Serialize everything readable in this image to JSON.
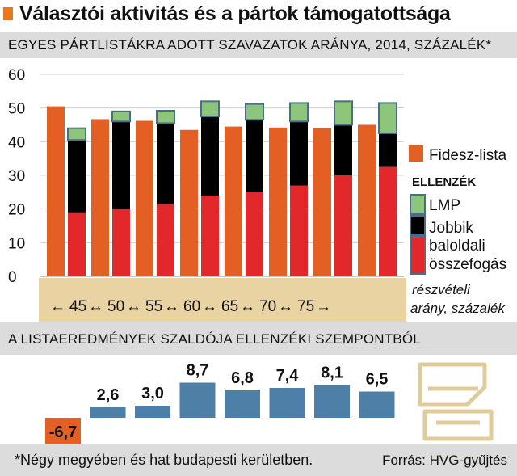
{
  "title": "Választói aktivitás és a pártok támogatottsága",
  "section1_title": "EGYES PÁRTLISTÁKRA ADOTT SZAVAZATOK ARÁNYA, 2014, SZÁZALÉK*",
  "section2_title": "A LISTAEREDMÉNYEK SZALDÓJA ELLENZÉKI SZEMPONTBÓL",
  "footnote": "*Négy megyében és hat budapesti kerületben.",
  "source": "Forrás: HVG-gyűjtés",
  "colors": {
    "fidesz": "#e35f24",
    "lmp": "#8dc67b",
    "lmp_border": "#4a6e8a",
    "jobbik": "#000000",
    "balodali": "#e3282b",
    "balance_bar": "#4e7fa6",
    "balance_negative": "#e35f24",
    "turnout_band": "#e9d3a3",
    "icon": "#e0cc9a"
  },
  "chart_data": [
    {
      "type": "bar",
      "layout": "grouped-stacked",
      "yticks": [
        "0",
        "10",
        "20",
        "30",
        "40",
        "50",
        "60"
      ],
      "ylim": [
        0,
        60
      ],
      "grid": true,
      "xlabel": [
        "részvételi",
        "arány, százalék"
      ],
      "turnout_ticks": [
        "45",
        "50",
        "55",
        "60",
        "65",
        "70",
        "75"
      ],
      "turnout_axis_text": [
        "←",
        "45",
        "↔",
        "50",
        "↔",
        "55",
        "↔",
        "60",
        "↔",
        "65",
        "↔",
        "70",
        "↔",
        "75",
        "→"
      ],
      "categories": [
        "<45",
        "45-50",
        "50-55",
        "55-60",
        "60-65",
        "65-70",
        "70-75",
        ">75"
      ],
      "series": [
        {
          "name": "Fidesz-lista",
          "stack": "fidesz",
          "values": [
            50.5,
            46.7,
            46.2,
            43.5,
            44.5,
            44.2,
            44.0,
            45.0
          ]
        },
        {
          "name": "összefogás",
          "stack": "ellenzek",
          "values": [
            19.0,
            20.0,
            21.5,
            24.0,
            25.0,
            27.0,
            30.0,
            32.5
          ]
        },
        {
          "name": "Jobbik",
          "stack": "ellenzek",
          "values": [
            21.5,
            26.0,
            24.0,
            23.5,
            21.5,
            19.0,
            15.0,
            10.0
          ]
        },
        {
          "name": "LMP",
          "stack": "ellenzek",
          "values": [
            3.5,
            3.0,
            3.7,
            4.5,
            4.7,
            5.5,
            7.0,
            9.0
          ]
        }
      ],
      "legend": {
        "placement": "right",
        "fidesz_label": "Fidesz-lista",
        "group_heading": "ELLENZÉK",
        "lmp_label": "LMP",
        "jobbik_label": "Jobbik",
        "balodali_label": "baloldali",
        "osszefogas_label": "összefogás"
      }
    },
    {
      "type": "bar",
      "categories": [
        "<45",
        "45-50",
        "50-55",
        "55-60",
        "60-65",
        "65-70",
        "70-75",
        ">75"
      ],
      "values": [
        -6.7,
        2.6,
        3.0,
        8.7,
        6.8,
        7.4,
        8.1,
        6.5
      ],
      "labels": [
        "-6,7",
        "2,6",
        "3,0",
        "8,7",
        "6,8",
        "7,4",
        "8,1",
        "6,5"
      ]
    }
  ]
}
